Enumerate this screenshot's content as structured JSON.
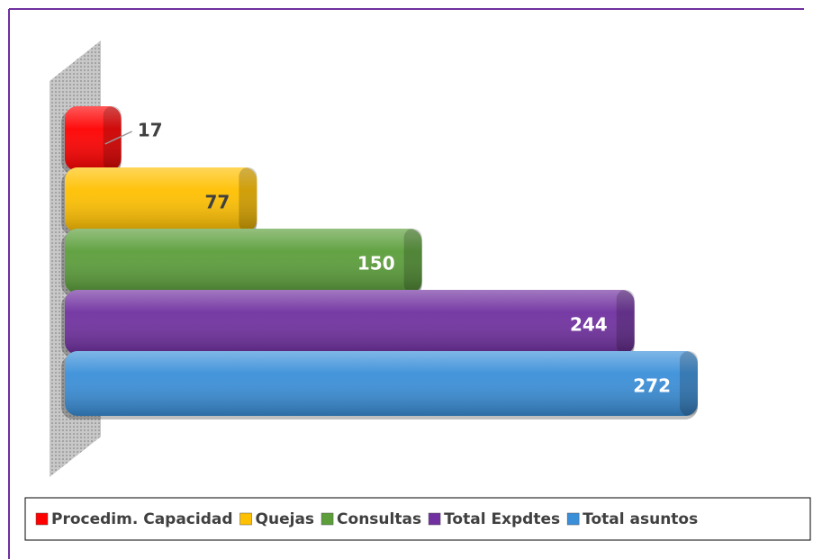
{
  "chart_data": {
    "type": "bar",
    "series": [
      {
        "name": "Procedim. Capacidad",
        "color": "#ff0000",
        "values": [
          17
        ]
      },
      {
        "name": "Quejas",
        "color": "#ffc000",
        "values": [
          77
        ]
      },
      {
        "name": "Consultas",
        "color": "#5b9e3a",
        "values": [
          150
        ]
      },
      {
        "name": "Total Expdtes",
        "color": "#7030a0",
        "values": [
          244
        ]
      },
      {
        "name": "Total asuntos",
        "color": "#3a8fd9",
        "values": [
          272
        ]
      }
    ]
  }
}
